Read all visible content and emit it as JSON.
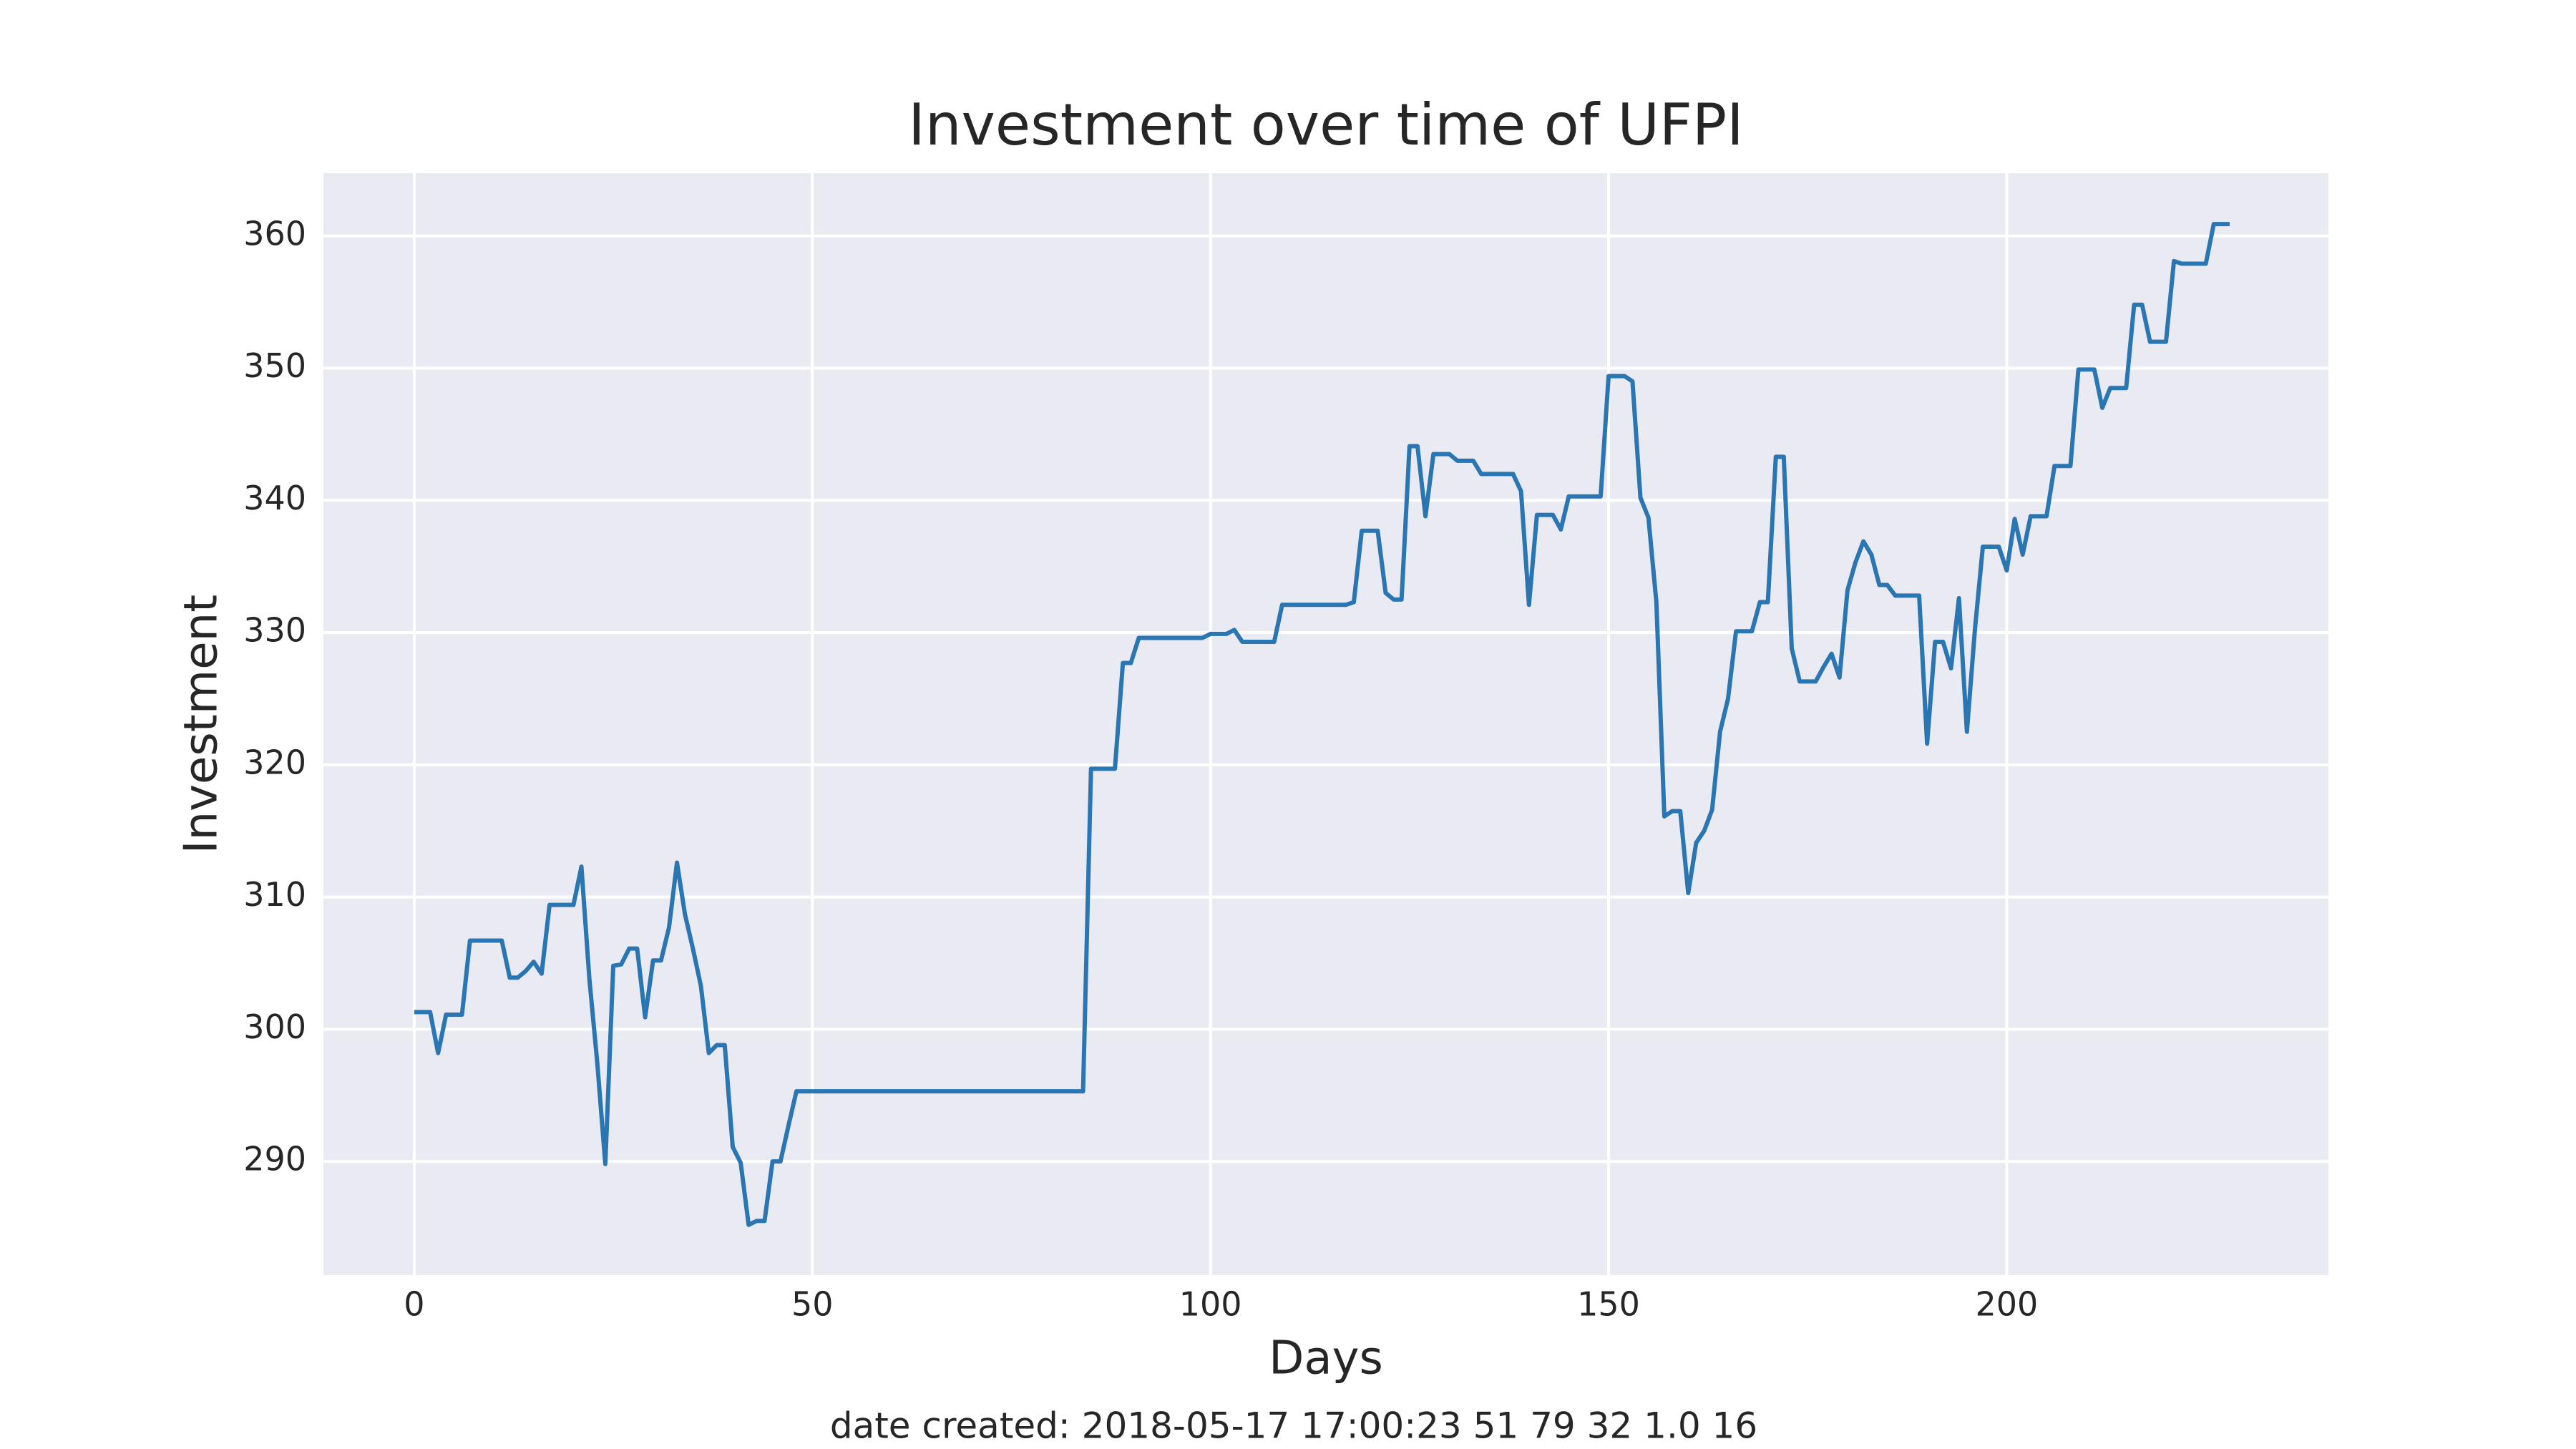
{
  "chart_data": {
    "type": "line",
    "title": "Investment over time of UFPI",
    "x_label": "Days",
    "y_label": "Investment",
    "footer": "date created: 2018-05-17 17:00:23 51 79 32 1.0 16",
    "background": "#eaeaf2",
    "grid": true,
    "xlim": [
      -11.4,
      240.4
    ],
    "ylim": [
      281.4,
      364.75
    ],
    "xticks": [
      0,
      50,
      100,
      150,
      200
    ],
    "yticks": [
      290,
      300,
      310,
      320,
      330,
      340,
      350,
      360
    ],
    "x": [
      0,
      1,
      2,
      3,
      4,
      5,
      6,
      7,
      8,
      9,
      10,
      11,
      12,
      13,
      14,
      15,
      16,
      17,
      18,
      19,
      20,
      21,
      22,
      23,
      24,
      25,
      26,
      27,
      28,
      29,
      30,
      31,
      32,
      33,
      34,
      35,
      36,
      37,
      38,
      39,
      40,
      41,
      42,
      43,
      44,
      45,
      46,
      47,
      48,
      49,
      50,
      51,
      52,
      53,
      54,
      55,
      56,
      57,
      58,
      59,
      60,
      61,
      62,
      63,
      64,
      65,
      66,
      67,
      68,
      69,
      70,
      71,
      72,
      73,
      74,
      75,
      76,
      77,
      78,
      79,
      80,
      81,
      82,
      83,
      84,
      85,
      86,
      87,
      88,
      89,
      90,
      91,
      92,
      93,
      94,
      95,
      96,
      97,
      98,
      99,
      100,
      101,
      102,
      103,
      104,
      105,
      106,
      107,
      108,
      109,
      110,
      111,
      112,
      113,
      114,
      115,
      116,
      117,
      118,
      119,
      120,
      121,
      122,
      123,
      124,
      125,
      126,
      127,
      128,
      129,
      130,
      131,
      132,
      133,
      134,
      135,
      136,
      137,
      138,
      139,
      140,
      141,
      142,
      143,
      144,
      145,
      146,
      147,
      148,
      149,
      150,
      151,
      152,
      153,
      154,
      155,
      156,
      157,
      158,
      159,
      160,
      161,
      162,
      163,
      164,
      165,
      166,
      167,
      168,
      169,
      170,
      171,
      172,
      173,
      174,
      175,
      176,
      177,
      178,
      179,
      180,
      181,
      182,
      183,
      184,
      185,
      186,
      187,
      188,
      189,
      190,
      191,
      192,
      193,
      194,
      195,
      196,
      197,
      198,
      199,
      200,
      201,
      202,
      203,
      204,
      205,
      206,
      207,
      208,
      209,
      210,
      211,
      212,
      213,
      214,
      215,
      216,
      217,
      218,
      219,
      220,
      221,
      222,
      223,
      224,
      225,
      226,
      227,
      228
    ],
    "series": [
      {
        "color": "#2a76b2",
        "values": [
          301.3,
          301.3,
          301.3,
          298.2,
          301.1,
          301.1,
          301.1,
          306.7,
          306.7,
          306.7,
          306.7,
          306.7,
          303.9,
          303.9,
          304.4,
          305.1,
          304.2,
          309.4,
          309.4,
          309.4,
          309.4,
          312.3,
          303.8,
          297.4,
          289.8,
          304.8,
          304.9,
          306.1,
          306.1,
          300.9,
          305.2,
          305.2,
          307.7,
          312.6,
          308.7,
          306.1,
          303.3,
          298.2,
          298.8,
          298.8,
          291.1,
          289.9,
          285.2,
          285.5,
          285.5,
          290.0,
          290.0,
          292.7,
          295.3,
          295.3,
          295.3,
          295.3,
          295.3,
          295.3,
          295.3,
          295.3,
          295.3,
          295.3,
          295.3,
          295.3,
          295.3,
          295.3,
          295.3,
          295.3,
          295.3,
          295.3,
          295.3,
          295.3,
          295.3,
          295.3,
          295.3,
          295.3,
          295.3,
          295.3,
          295.3,
          295.3,
          295.3,
          295.3,
          295.3,
          295.3,
          295.3,
          295.3,
          295.3,
          295.3,
          295.3,
          319.7,
          319.7,
          319.7,
          319.7,
          327.7,
          327.7,
          329.6,
          329.6,
          329.6,
          329.6,
          329.6,
          329.6,
          329.6,
          329.6,
          329.6,
          329.9,
          329.9,
          329.9,
          330.2,
          329.3,
          329.3,
          329.3,
          329.3,
          329.3,
          332.1,
          332.1,
          332.1,
          332.1,
          332.1,
          332.1,
          332.1,
          332.1,
          332.1,
          332.3,
          337.7,
          337.7,
          337.7,
          333.0,
          332.5,
          332.5,
          344.1,
          344.1,
          338.8,
          343.5,
          343.5,
          343.5,
          343.0,
          343.0,
          343.0,
          342.0,
          342.0,
          342.0,
          342.0,
          342.0,
          340.7,
          332.1,
          338.9,
          338.9,
          338.9,
          337.8,
          340.3,
          340.3,
          340.3,
          340.3,
          340.3,
          349.4,
          349.4,
          349.4,
          349.0,
          340.2,
          338.7,
          332.3,
          316.1,
          316.5,
          316.5,
          310.3,
          314.1,
          315.0,
          316.6,
          322.5,
          325.0,
          330.1,
          330.1,
          330.1,
          332.3,
          332.3,
          343.3,
          343.3,
          328.8,
          326.3,
          326.3,
          326.3,
          327.4,
          328.4,
          326.6,
          333.2,
          335.3,
          336.9,
          335.9,
          333.6,
          333.6,
          332.8,
          332.8,
          332.8,
          332.8,
          321.6,
          329.3,
          329.3,
          327.3,
          332.6,
          322.5,
          330.2,
          336.5,
          336.5,
          336.5,
          334.7,
          338.6,
          335.9,
          338.8,
          338.8,
          338.8,
          342.6,
          342.6,
          342.6,
          349.9,
          349.9,
          349.9,
          347.0,
          348.5,
          348.5,
          348.5,
          354.8,
          354.8,
          352.0,
          352.0,
          352.0,
          358.1,
          357.9,
          357.9,
          357.9,
          357.9,
          360.9,
          360.9,
          360.9
        ]
      }
    ]
  }
}
